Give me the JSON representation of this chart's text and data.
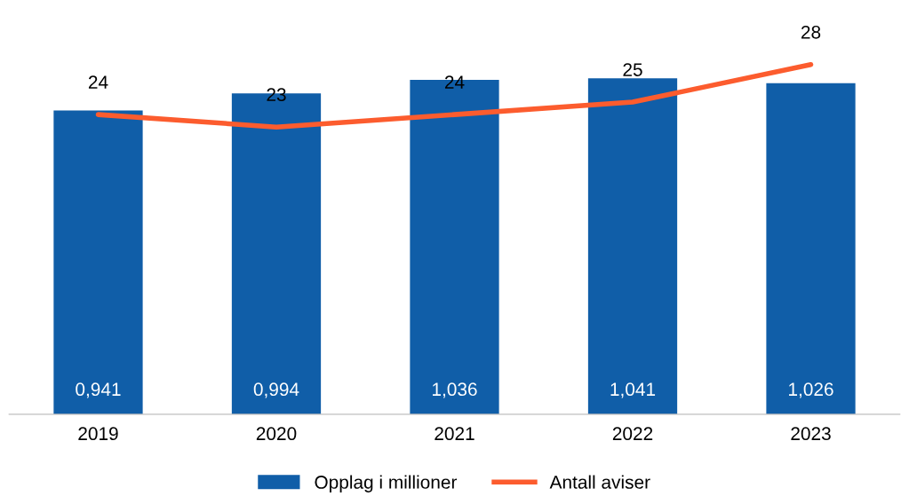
{
  "chart_data": {
    "type": "bar",
    "categories": [
      "2019",
      "2020",
      "2021",
      "2022",
      "2023"
    ],
    "series": [
      {
        "name": "Opplag i millioner",
        "color": "#105ea8",
        "values": [
          0.941,
          0.994,
          1.036,
          1.041,
          1.026
        ],
        "value_labels": [
          "0,941",
          "0,994",
          "1,036",
          "1,041",
          "1,026"
        ]
      },
      {
        "name": "Antall aviser",
        "type": "line",
        "axis": "y2",
        "color": "#fc5c2e",
        "values": [
          24,
          23,
          24,
          25,
          28
        ],
        "value_labels": [
          "24",
          "23",
          "24",
          "25",
          "28"
        ]
      }
    ],
    "tick_labels": "x",
    "legend": "bottom",
    "grid": false,
    "marker": "none",
    "line_style": "solid"
  }
}
